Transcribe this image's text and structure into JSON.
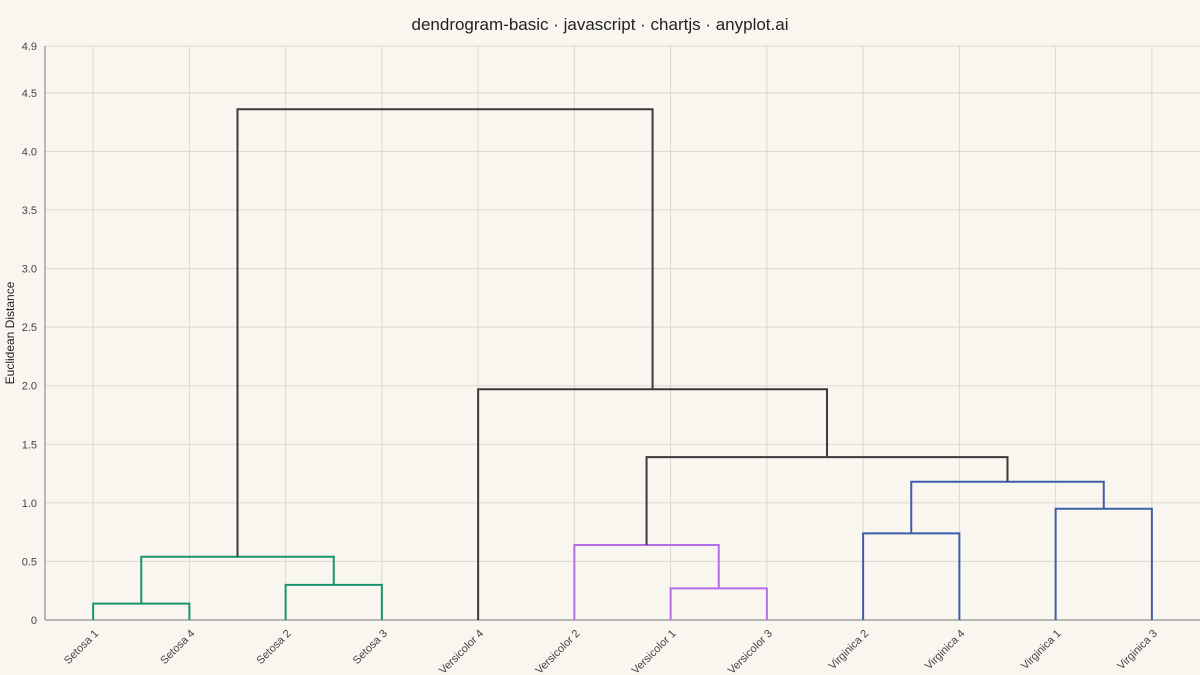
{
  "chart_data": {
    "type": "dendrogram",
    "title": "dendrogram-basic · javascript · chartjs · anyplot.ai",
    "ylabel": "Euclidean Distance",
    "xlabel": "",
    "ylim": [
      0,
      4.9
    ],
    "yticks": [
      0,
      0.5,
      1.0,
      1.5,
      2.0,
      2.5,
      3.0,
      3.5,
      4.0,
      4.5,
      4.9
    ],
    "ytick_labels": [
      "0",
      "0.5",
      "1.0",
      "1.5",
      "2.0",
      "2.5",
      "3.0",
      "3.5",
      "4.0",
      "4.5",
      "4.9"
    ],
    "grid": true,
    "leaves": [
      "Setosa 1",
      "Setosa 4",
      "Setosa 2",
      "Setosa 3",
      "Versicolor 4",
      "Versicolor 2",
      "Versicolor 1",
      "Versicolor 3",
      "Virginica 2",
      "Virginica 4",
      "Virginica 1",
      "Virginica 3"
    ],
    "colors": {
      "setosa": "#17966e",
      "versicolor": "#b46ee8",
      "virginica": "#3c5ea8",
      "above_threshold": "#3a3a3a"
    },
    "merges": [
      {
        "left": 0,
        "right": 1,
        "height": 0.14,
        "color": "setosa"
      },
      {
        "left": 2,
        "right": 3,
        "height": 0.3,
        "color": "setosa"
      },
      {
        "left": 12,
        "right": 13,
        "height": 0.54,
        "color": "setosa"
      },
      {
        "left": 6,
        "right": 7,
        "height": 0.27,
        "color": "versicolor"
      },
      {
        "left": 5,
        "right": 15,
        "height": 0.64,
        "color": "versicolor"
      },
      {
        "left": 8,
        "right": 9,
        "height": 0.74,
        "color": "virginica"
      },
      {
        "left": 10,
        "right": 11,
        "height": 0.95,
        "color": "virginica"
      },
      {
        "left": 17,
        "right": 18,
        "height": 1.18,
        "color": "virginica"
      },
      {
        "left": 16,
        "right": 19,
        "height": 1.39,
        "color": "above_threshold"
      },
      {
        "left": 4,
        "right": 20,
        "height": 1.97,
        "color": "above_threshold"
      },
      {
        "left": 14,
        "right": 21,
        "height": 4.36,
        "color": "above_threshold"
      }
    ]
  }
}
